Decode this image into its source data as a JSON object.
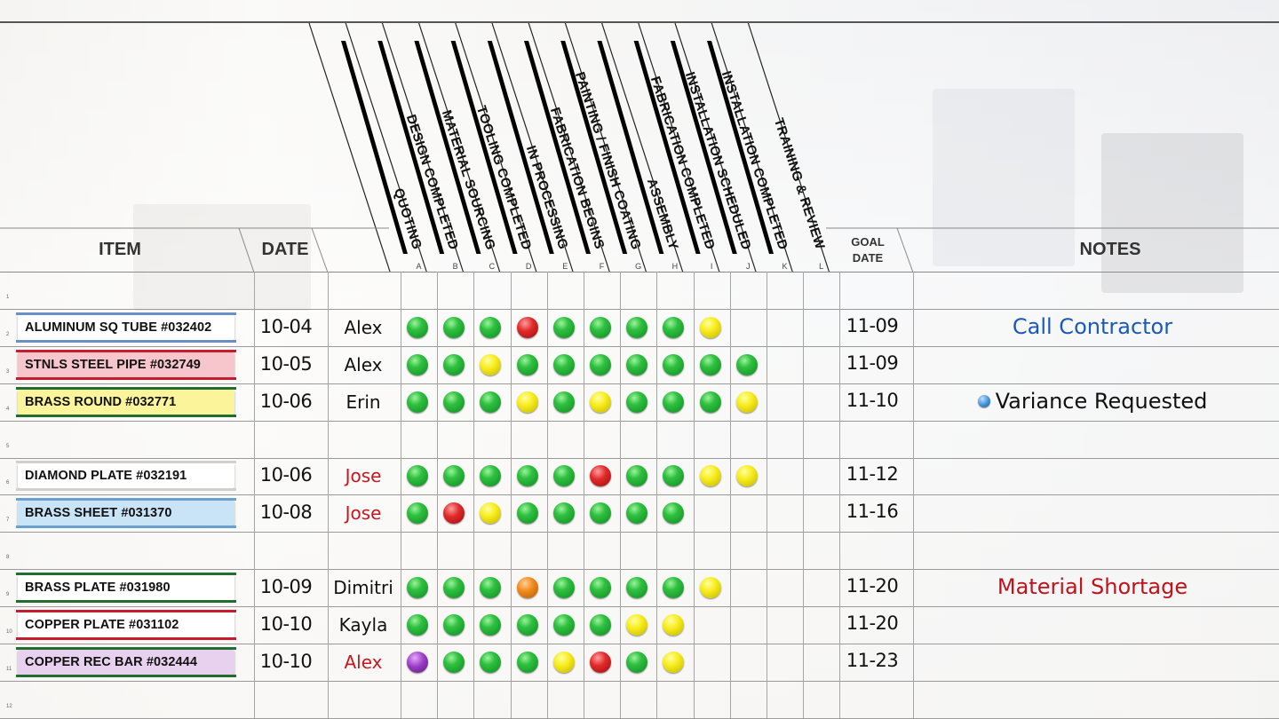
{
  "headers": {
    "item": "ITEM",
    "date": "DATE",
    "goal_date_line1": "GOAL",
    "goal_date_line2": "DATE",
    "notes": "NOTES"
  },
  "stages": [
    {
      "letter": "A",
      "label": "QUOTING"
    },
    {
      "letter": "B",
      "label": "DESIGN COMPLETED"
    },
    {
      "letter": "C",
      "label": "MATERIAL SOURCING"
    },
    {
      "letter": "D",
      "label": "TOOLING COMPLETED"
    },
    {
      "letter": "E",
      "label": "IN PROCESSING"
    },
    {
      "letter": "F",
      "label": "FABRICATION BEGINS"
    },
    {
      "letter": "G",
      "label": "PAINTING / FINISH COATING"
    },
    {
      "letter": "H",
      "label": "ASSEMBLY"
    },
    {
      "letter": "I",
      "label": "FABRICATION COMPLETED"
    },
    {
      "letter": "J",
      "label": "INSTALLATION SCHEDULED"
    },
    {
      "letter": "K",
      "label": "INSTALLATION COMPLETED"
    },
    {
      "letter": "L",
      "label": "TRAINING & REVIEW"
    }
  ],
  "rows": [
    {
      "num": "1"
    },
    {
      "num": "2",
      "item": "ALUMINUM SQ TUBE #032402",
      "tag_color": "#ffffff",
      "tag_top": "#6a8fc8",
      "tag_bottom": "#6a8fc8",
      "date": "10-04",
      "assignee": "Alex",
      "assignee_color": "#111111",
      "goal": "11-09",
      "status": [
        "green",
        "green",
        "green",
        "red",
        "green",
        "green",
        "green",
        "green",
        "yellow"
      ]
    },
    {
      "num": "3",
      "item": "STNLS STEEL PIPE #032749",
      "tag_color": "#f7c6cc",
      "tag_top": "#c41e2e",
      "tag_bottom": "#c41e2e",
      "date": "10-05",
      "assignee": "Alex",
      "assignee_color": "#111111",
      "goal": "11-09",
      "status": [
        "green",
        "green",
        "yellow",
        "green",
        "green",
        "green",
        "green",
        "green",
        "green",
        "green"
      ]
    },
    {
      "num": "4",
      "item": "BRASS ROUND #032771",
      "tag_color": "#fbf49a",
      "tag_top": "#1f6d2f",
      "tag_bottom": "#1f6d2f",
      "date": "10-06",
      "assignee": "Erin",
      "assignee_color": "#111111",
      "goal": "11-10",
      "status": [
        "green",
        "green",
        "green",
        "yellow",
        "green",
        "yellow",
        "green",
        "green",
        "green",
        "yellow"
      ]
    },
    {
      "num": "5"
    },
    {
      "num": "6",
      "item": "DIAMOND PLATE #032191",
      "tag_color": "#ffffff",
      "tag_top": "#d0d0d0",
      "tag_bottom": "#d0d0d0",
      "date": "10-06",
      "assignee": "Jose",
      "assignee_color": "#c8161d",
      "goal": "11-12",
      "status": [
        "green",
        "green",
        "green",
        "green",
        "green",
        "red",
        "green",
        "green",
        "yellow",
        "yellow"
      ]
    },
    {
      "num": "7",
      "item": "BRASS SHEET #031370",
      "tag_color": "#c9e3f7",
      "tag_top": "#6a9fd0",
      "tag_bottom": "#6a9fd0",
      "date": "10-08",
      "assignee": "Jose",
      "assignee_color": "#c8161d",
      "goal": "11-16",
      "status": [
        "green",
        "red",
        "yellow",
        "green",
        "green",
        "green",
        "green",
        "green"
      ]
    },
    {
      "num": "8"
    },
    {
      "num": "9",
      "item": "BRASS PLATE #031980",
      "tag_color": "#ffffff",
      "tag_top": "#1f6d2f",
      "tag_bottom": "#1f6d2f",
      "date": "10-09",
      "assignee": "Dimitri",
      "assignee_color": "#111111",
      "goal": "11-20",
      "status": [
        "green",
        "green",
        "green",
        "orange",
        "green",
        "green",
        "green",
        "green",
        "yellow"
      ]
    },
    {
      "num": "10",
      "item": "COPPER PLATE #031102",
      "tag_color": "#ffffff",
      "tag_top": "#c41e2e",
      "tag_bottom": "#c41e2e",
      "date": "10-10",
      "assignee": "Kayla",
      "assignee_color": "#111111",
      "goal": "11-20",
      "status": [
        "green",
        "green",
        "green",
        "green",
        "green",
        "green",
        "yellow",
        "yellow"
      ]
    },
    {
      "num": "11",
      "item": "COPPER REC BAR #032444",
      "tag_color": "#e8d1ee",
      "tag_top": "#1f6d2f",
      "tag_bottom": "#1f6d2f",
      "date": "10-10",
      "assignee": "Alex",
      "assignee_color": "#c8161d",
      "goal": "11-23",
      "status": [
        "purple",
        "green",
        "green",
        "green",
        "yellow",
        "red",
        "green",
        "yellow"
      ]
    },
    {
      "num": "12"
    }
  ],
  "notes": [
    {
      "row": 1,
      "text": "Call Contractor",
      "color": "#1c58b8",
      "marker": false
    },
    {
      "row": 3,
      "text": "Variance Requested",
      "color": "#111111",
      "marker": true,
      "marker_color": "#3f8fd6"
    },
    {
      "row": 8,
      "text": "Material Shortage",
      "color": "#c0121c",
      "marker": false
    }
  ]
}
